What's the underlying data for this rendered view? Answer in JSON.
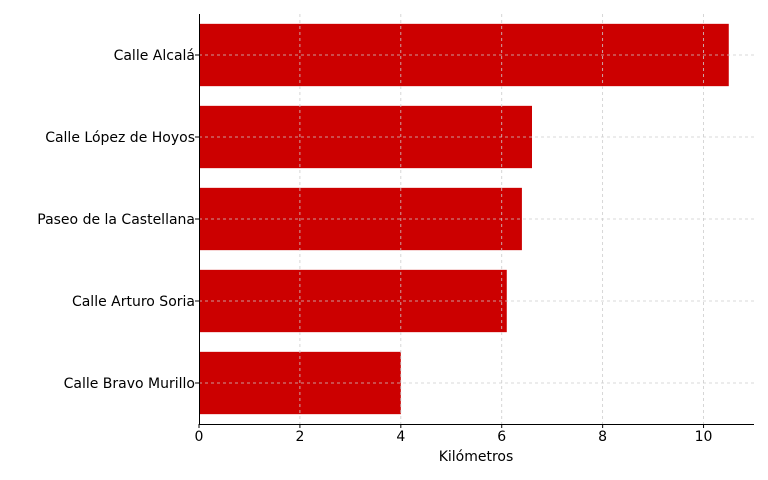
{
  "chart_data": {
    "type": "bar",
    "orientation": "horizontal",
    "categories": [
      "Calle Alcalá",
      "Calle López de Hoyos",
      "Paseo de la Castellana",
      "Calle Arturo Soria",
      "Calle Bravo Murillo"
    ],
    "values": [
      10.5,
      6.6,
      6.4,
      6.1,
      4.0
    ],
    "xlabel": "Kilómetros",
    "ylabel": "",
    "xlim": [
      0,
      11
    ],
    "xticks": [
      "0",
      "2",
      "4",
      "6",
      "8",
      "10"
    ],
    "grid": true,
    "bar_color": "#cc0000"
  }
}
